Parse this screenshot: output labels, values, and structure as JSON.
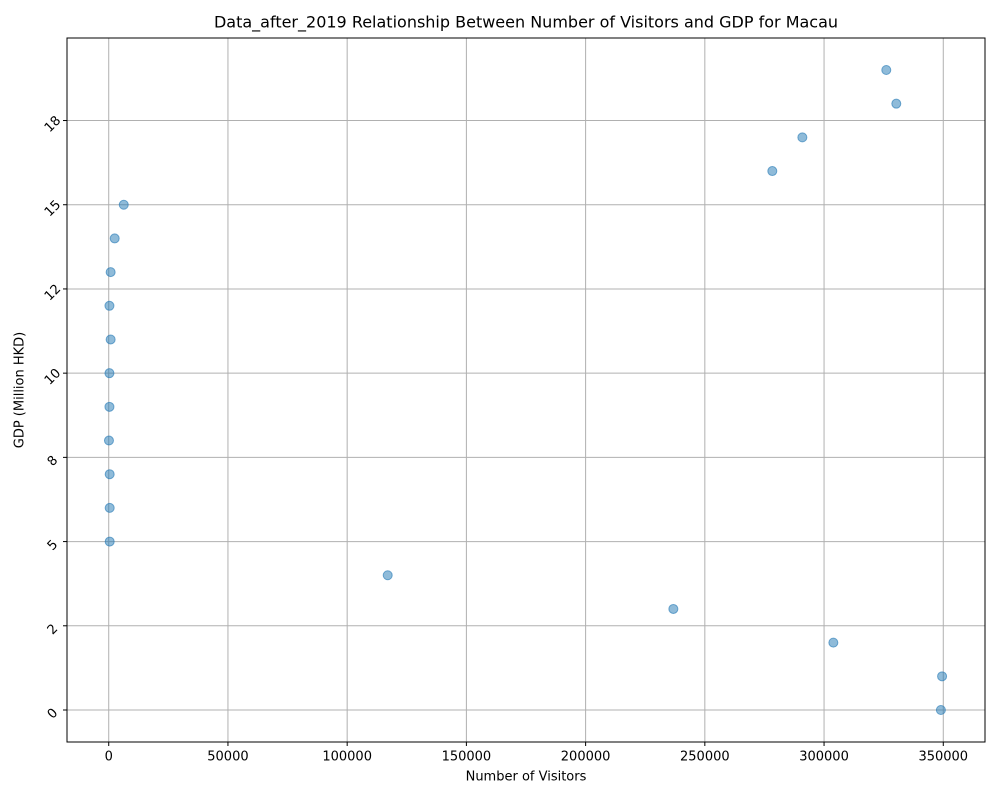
{
  "chart_data": {
    "type": "scatter",
    "title": "Data_after_2019 Relationship Between Number of Visitors and GDP for Macau",
    "x_label": "Number of Visitors",
    "y_label": "GDP (Million HKD)",
    "color": "#1f77b4",
    "grid": true,
    "x": [
      349000,
      349500,
      303900,
      236800,
      117000,
      400,
      400,
      400,
      100,
      300,
      300,
      800,
      300,
      800,
      2500,
      6300,
      278300,
      290900,
      330300,
      326100
    ],
    "values": [
      0,
      1,
      2,
      3,
      4,
      5,
      6,
      7,
      8,
      9,
      10,
      11,
      12,
      13,
      14,
      15,
      16,
      17,
      18,
      19
    ],
    "xlim": [
      -17500,
      367500
    ],
    "xticks": [
      0,
      50000,
      100000,
      150000,
      200000,
      250000,
      300000,
      350000
    ],
    "ylim": [
      -0.95,
      19.95
    ],
    "yticks": [
      0,
      {
        "value": 2.5,
        "label": "2"
      },
      5,
      {
        "value": 7.5,
        "label": "8"
      },
      10,
      {
        "value": 12.5,
        "label": "12"
      },
      15,
      {
        "value": 17.5,
        "label": "18"
      }
    ]
  }
}
